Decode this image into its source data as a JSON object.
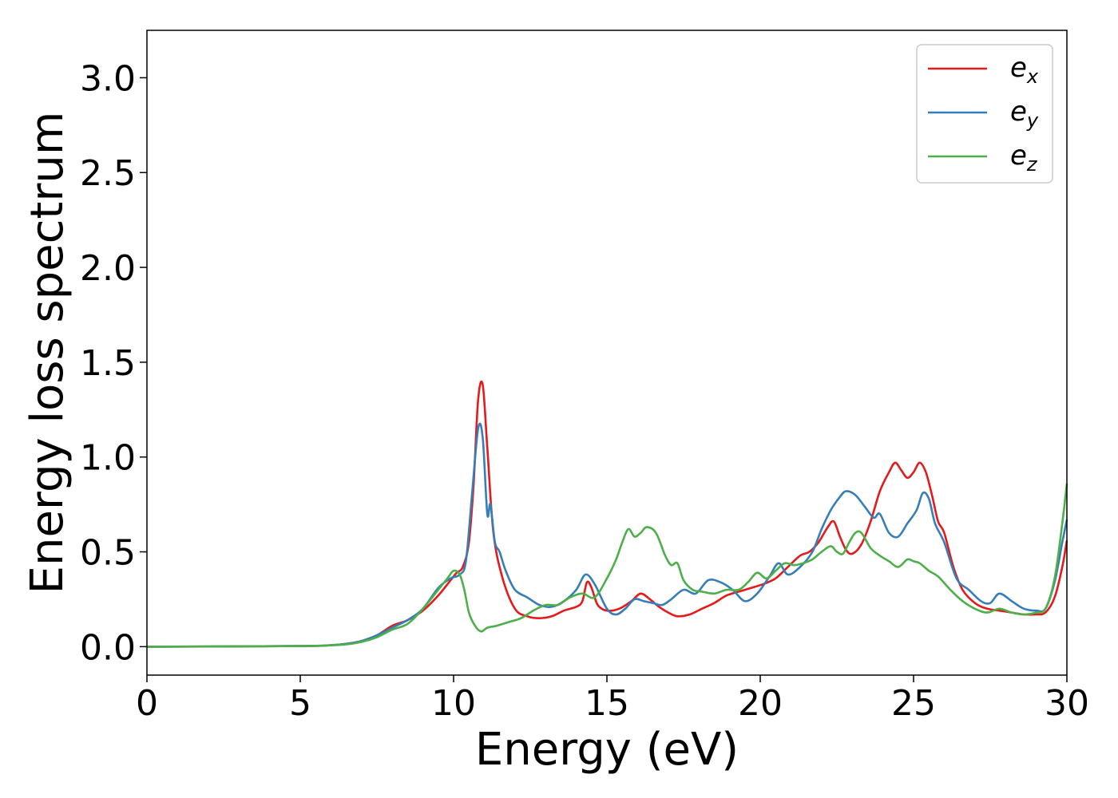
{
  "chart_data": {
    "type": "line",
    "title": "",
    "xlabel": "Energy (eV)",
    "ylabel": "Energy loss spectrum",
    "xlim": [
      0,
      30
    ],
    "ylim": [
      -0.15,
      3.25
    ],
    "xticks": [
      0,
      5,
      10,
      15,
      20,
      25,
      30
    ],
    "xtick_labels": [
      "0",
      "5",
      "10",
      "15",
      "20",
      "25",
      "30"
    ],
    "yticks": [
      0.0,
      0.5,
      1.0,
      1.5,
      2.0,
      2.5,
      3.0
    ],
    "ytick_labels": [
      "0.0",
      "0.5",
      "1.0",
      "1.5",
      "2.0",
      "2.5",
      "3.0"
    ],
    "grid": false,
    "legend_position": "top-right",
    "series": [
      {
        "name_base": "e",
        "name_sub": "x",
        "color": "#e41a1c",
        "x": [
          0,
          5,
          6,
          6.5,
          7,
          7.5,
          8,
          8.5,
          9,
          9.5,
          9.9,
          10.1,
          10.3,
          10.5,
          10.65,
          10.8,
          10.95,
          11.1,
          11.3,
          11.6,
          12.0,
          12.4,
          12.8,
          13.2,
          13.6,
          14.0,
          14.2,
          14.35,
          14.5,
          14.7,
          15.0,
          15.4,
          15.8,
          16.1,
          16.4,
          16.7,
          17.0,
          17.3,
          17.7,
          18.1,
          18.5,
          18.9,
          19.3,
          19.7,
          20.1,
          20.5,
          20.9,
          21.3,
          21.6,
          21.9,
          22.2,
          22.4,
          22.6,
          22.8,
          23.0,
          23.3,
          23.6,
          23.9,
          24.2,
          24.4,
          24.6,
          24.8,
          25.0,
          25.2,
          25.4,
          25.6,
          25.8,
          26.0,
          26.3,
          26.6,
          27.0,
          27.4,
          27.8,
          28.2,
          28.6,
          29.0,
          29.3,
          29.6,
          29.85,
          30.0
        ],
        "y": [
          0.0,
          0.003,
          0.008,
          0.015,
          0.03,
          0.06,
          0.11,
          0.14,
          0.19,
          0.27,
          0.35,
          0.39,
          0.42,
          0.55,
          0.85,
          1.3,
          1.38,
          1.05,
          0.6,
          0.36,
          0.2,
          0.16,
          0.15,
          0.16,
          0.19,
          0.21,
          0.24,
          0.34,
          0.31,
          0.22,
          0.19,
          0.2,
          0.24,
          0.28,
          0.25,
          0.21,
          0.18,
          0.16,
          0.17,
          0.2,
          0.23,
          0.27,
          0.29,
          0.31,
          0.33,
          0.36,
          0.42,
          0.48,
          0.5,
          0.55,
          0.63,
          0.66,
          0.58,
          0.51,
          0.49,
          0.54,
          0.66,
          0.82,
          0.92,
          0.97,
          0.93,
          0.89,
          0.92,
          0.97,
          0.92,
          0.8,
          0.66,
          0.6,
          0.42,
          0.3,
          0.23,
          0.2,
          0.19,
          0.18,
          0.17,
          0.17,
          0.18,
          0.26,
          0.42,
          0.56
        ]
      },
      {
        "name_base": "e",
        "name_sub": "y",
        "color": "#377eb8",
        "x": [
          0,
          5,
          6,
          6.5,
          7,
          7.5,
          8,
          8.5,
          9,
          9.5,
          9.9,
          10.2,
          10.4,
          10.6,
          10.8,
          10.95,
          11.1,
          11.2,
          11.35,
          11.5,
          11.7,
          12.0,
          12.4,
          12.8,
          13.2,
          13.6,
          14.0,
          14.3,
          14.6,
          15.0,
          15.3,
          15.6,
          15.9,
          16.2,
          16.5,
          16.8,
          17.1,
          17.5,
          17.9,
          18.3,
          18.7,
          19.1,
          19.5,
          19.9,
          20.3,
          20.6,
          20.9,
          21.3,
          21.7,
          22.0,
          22.3,
          22.6,
          22.8,
          23.1,
          23.4,
          23.7,
          23.9,
          24.2,
          24.5,
          24.8,
          25.1,
          25.3,
          25.5,
          25.7,
          26.0,
          26.4,
          26.8,
          27.2,
          27.5,
          27.8,
          28.2,
          28.6,
          29.0,
          29.3,
          29.6,
          29.85,
          30.0
        ],
        "y": [
          0.0,
          0.003,
          0.008,
          0.015,
          0.03,
          0.06,
          0.1,
          0.14,
          0.2,
          0.31,
          0.36,
          0.38,
          0.45,
          0.8,
          1.15,
          1.1,
          0.7,
          0.75,
          0.55,
          0.5,
          0.4,
          0.3,
          0.26,
          0.22,
          0.21,
          0.24,
          0.3,
          0.38,
          0.33,
          0.2,
          0.17,
          0.2,
          0.25,
          0.24,
          0.23,
          0.22,
          0.25,
          0.3,
          0.28,
          0.35,
          0.34,
          0.3,
          0.24,
          0.28,
          0.37,
          0.44,
          0.38,
          0.42,
          0.5,
          0.62,
          0.72,
          0.79,
          0.82,
          0.8,
          0.74,
          0.68,
          0.7,
          0.6,
          0.58,
          0.65,
          0.72,
          0.81,
          0.78,
          0.65,
          0.55,
          0.36,
          0.3,
          0.24,
          0.23,
          0.28,
          0.24,
          0.2,
          0.19,
          0.2,
          0.34,
          0.55,
          0.67
        ]
      },
      {
        "name_base": "e",
        "name_sub": "z",
        "color": "#4daf4a",
        "x": [
          0,
          5,
          6,
          6.5,
          7,
          7.5,
          8,
          8.5,
          9,
          9.5,
          9.8,
          10.0,
          10.2,
          10.35,
          10.5,
          10.7,
          10.9,
          11.1,
          11.4,
          11.8,
          12.2,
          12.6,
          13.0,
          13.4,
          13.8,
          14.2,
          14.6,
          15.0,
          15.3,
          15.5,
          15.7,
          15.9,
          16.1,
          16.3,
          16.6,
          16.9,
          17.1,
          17.3,
          17.5,
          17.8,
          18.1,
          18.5,
          18.9,
          19.3,
          19.6,
          19.9,
          20.2,
          20.5,
          20.8,
          21.1,
          21.4,
          21.7,
          22.0,
          22.3,
          22.5,
          22.7,
          22.9,
          23.1,
          23.3,
          23.6,
          23.9,
          24.2,
          24.5,
          24.8,
          25.0,
          25.2,
          25.5,
          25.8,
          26.2,
          26.6,
          27.0,
          27.4,
          27.8,
          28.2,
          28.6,
          29.0,
          29.3,
          29.6,
          29.85,
          30.0
        ],
        "y": [
          0.0,
          0.003,
          0.007,
          0.012,
          0.025,
          0.05,
          0.09,
          0.12,
          0.2,
          0.3,
          0.36,
          0.4,
          0.38,
          0.3,
          0.18,
          0.11,
          0.08,
          0.1,
          0.11,
          0.13,
          0.15,
          0.19,
          0.22,
          0.22,
          0.26,
          0.28,
          0.26,
          0.36,
          0.46,
          0.55,
          0.62,
          0.58,
          0.6,
          0.63,
          0.6,
          0.48,
          0.43,
          0.44,
          0.35,
          0.3,
          0.29,
          0.28,
          0.3,
          0.3,
          0.34,
          0.39,
          0.36,
          0.4,
          0.44,
          0.43,
          0.44,
          0.46,
          0.5,
          0.53,
          0.5,
          0.49,
          0.55,
          0.6,
          0.6,
          0.52,
          0.48,
          0.45,
          0.42,
          0.46,
          0.45,
          0.44,
          0.4,
          0.37,
          0.3,
          0.24,
          0.2,
          0.18,
          0.2,
          0.18,
          0.17,
          0.18,
          0.2,
          0.36,
          0.65,
          0.86
        ]
      }
    ]
  }
}
